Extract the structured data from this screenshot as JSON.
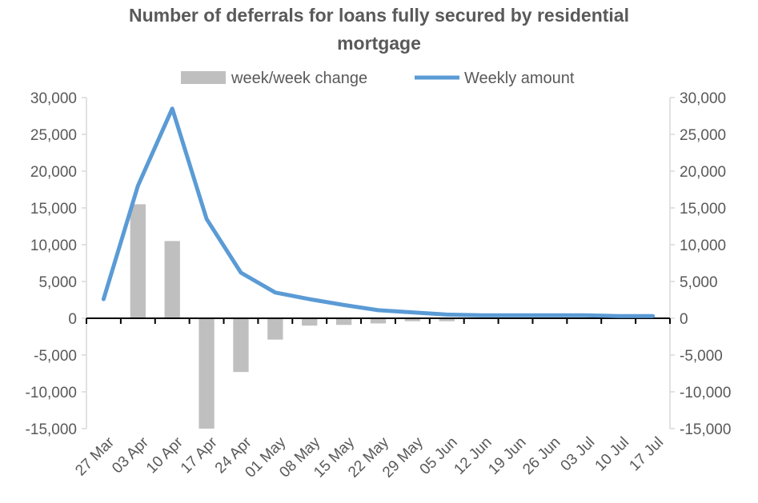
{
  "chart_data": {
    "type": "bar+line",
    "title_lines": [
      "Number of deferrals for loans fully secured by residential",
      "mortgage"
    ],
    "categories": [
      "27 Mar",
      "03 Apr",
      "10 Apr",
      "17 Apr",
      "24 Apr",
      "01 May",
      "08 May",
      "15 May",
      "22 May",
      "29 May",
      "05 Jun",
      "12 Jun",
      "19 Jun",
      "26 Jun",
      "03 Jul",
      "10 Jul",
      "17 Jul"
    ],
    "series": [
      {
        "name": "week/week change",
        "kind": "bar",
        "color": "#bfbfbf",
        "values": [
          null,
          15500,
          10500,
          -15000,
          -7300,
          -2900,
          -1000,
          -900,
          -700,
          -400,
          -400,
          -100,
          -50,
          0,
          0,
          -100,
          0
        ]
      },
      {
        "name": "Weekly amount",
        "kind": "line",
        "color": "#5b9bd5",
        "values": [
          2600,
          18000,
          28500,
          13500,
          6200,
          3500,
          2600,
          1800,
          1100,
          800,
          500,
          400,
          400,
          400,
          400,
          300,
          300
        ]
      }
    ],
    "y_ticks": [
      "30,000",
      "25,000",
      "20,000",
      "15,000",
      "10,000",
      "5,000",
      "0",
      "-5,000",
      "-10,000",
      "-15,000"
    ],
    "y2_ticks": [
      "30,000",
      "25,000",
      "20,000",
      "15,000",
      "10,000",
      "5,000",
      "0",
      "-5,000",
      "-10,000",
      "-15,000"
    ],
    "ylim": [
      -15000,
      30000
    ],
    "y2lim": [
      -15000,
      30000
    ],
    "legend_position": "top-center",
    "grid": false
  }
}
